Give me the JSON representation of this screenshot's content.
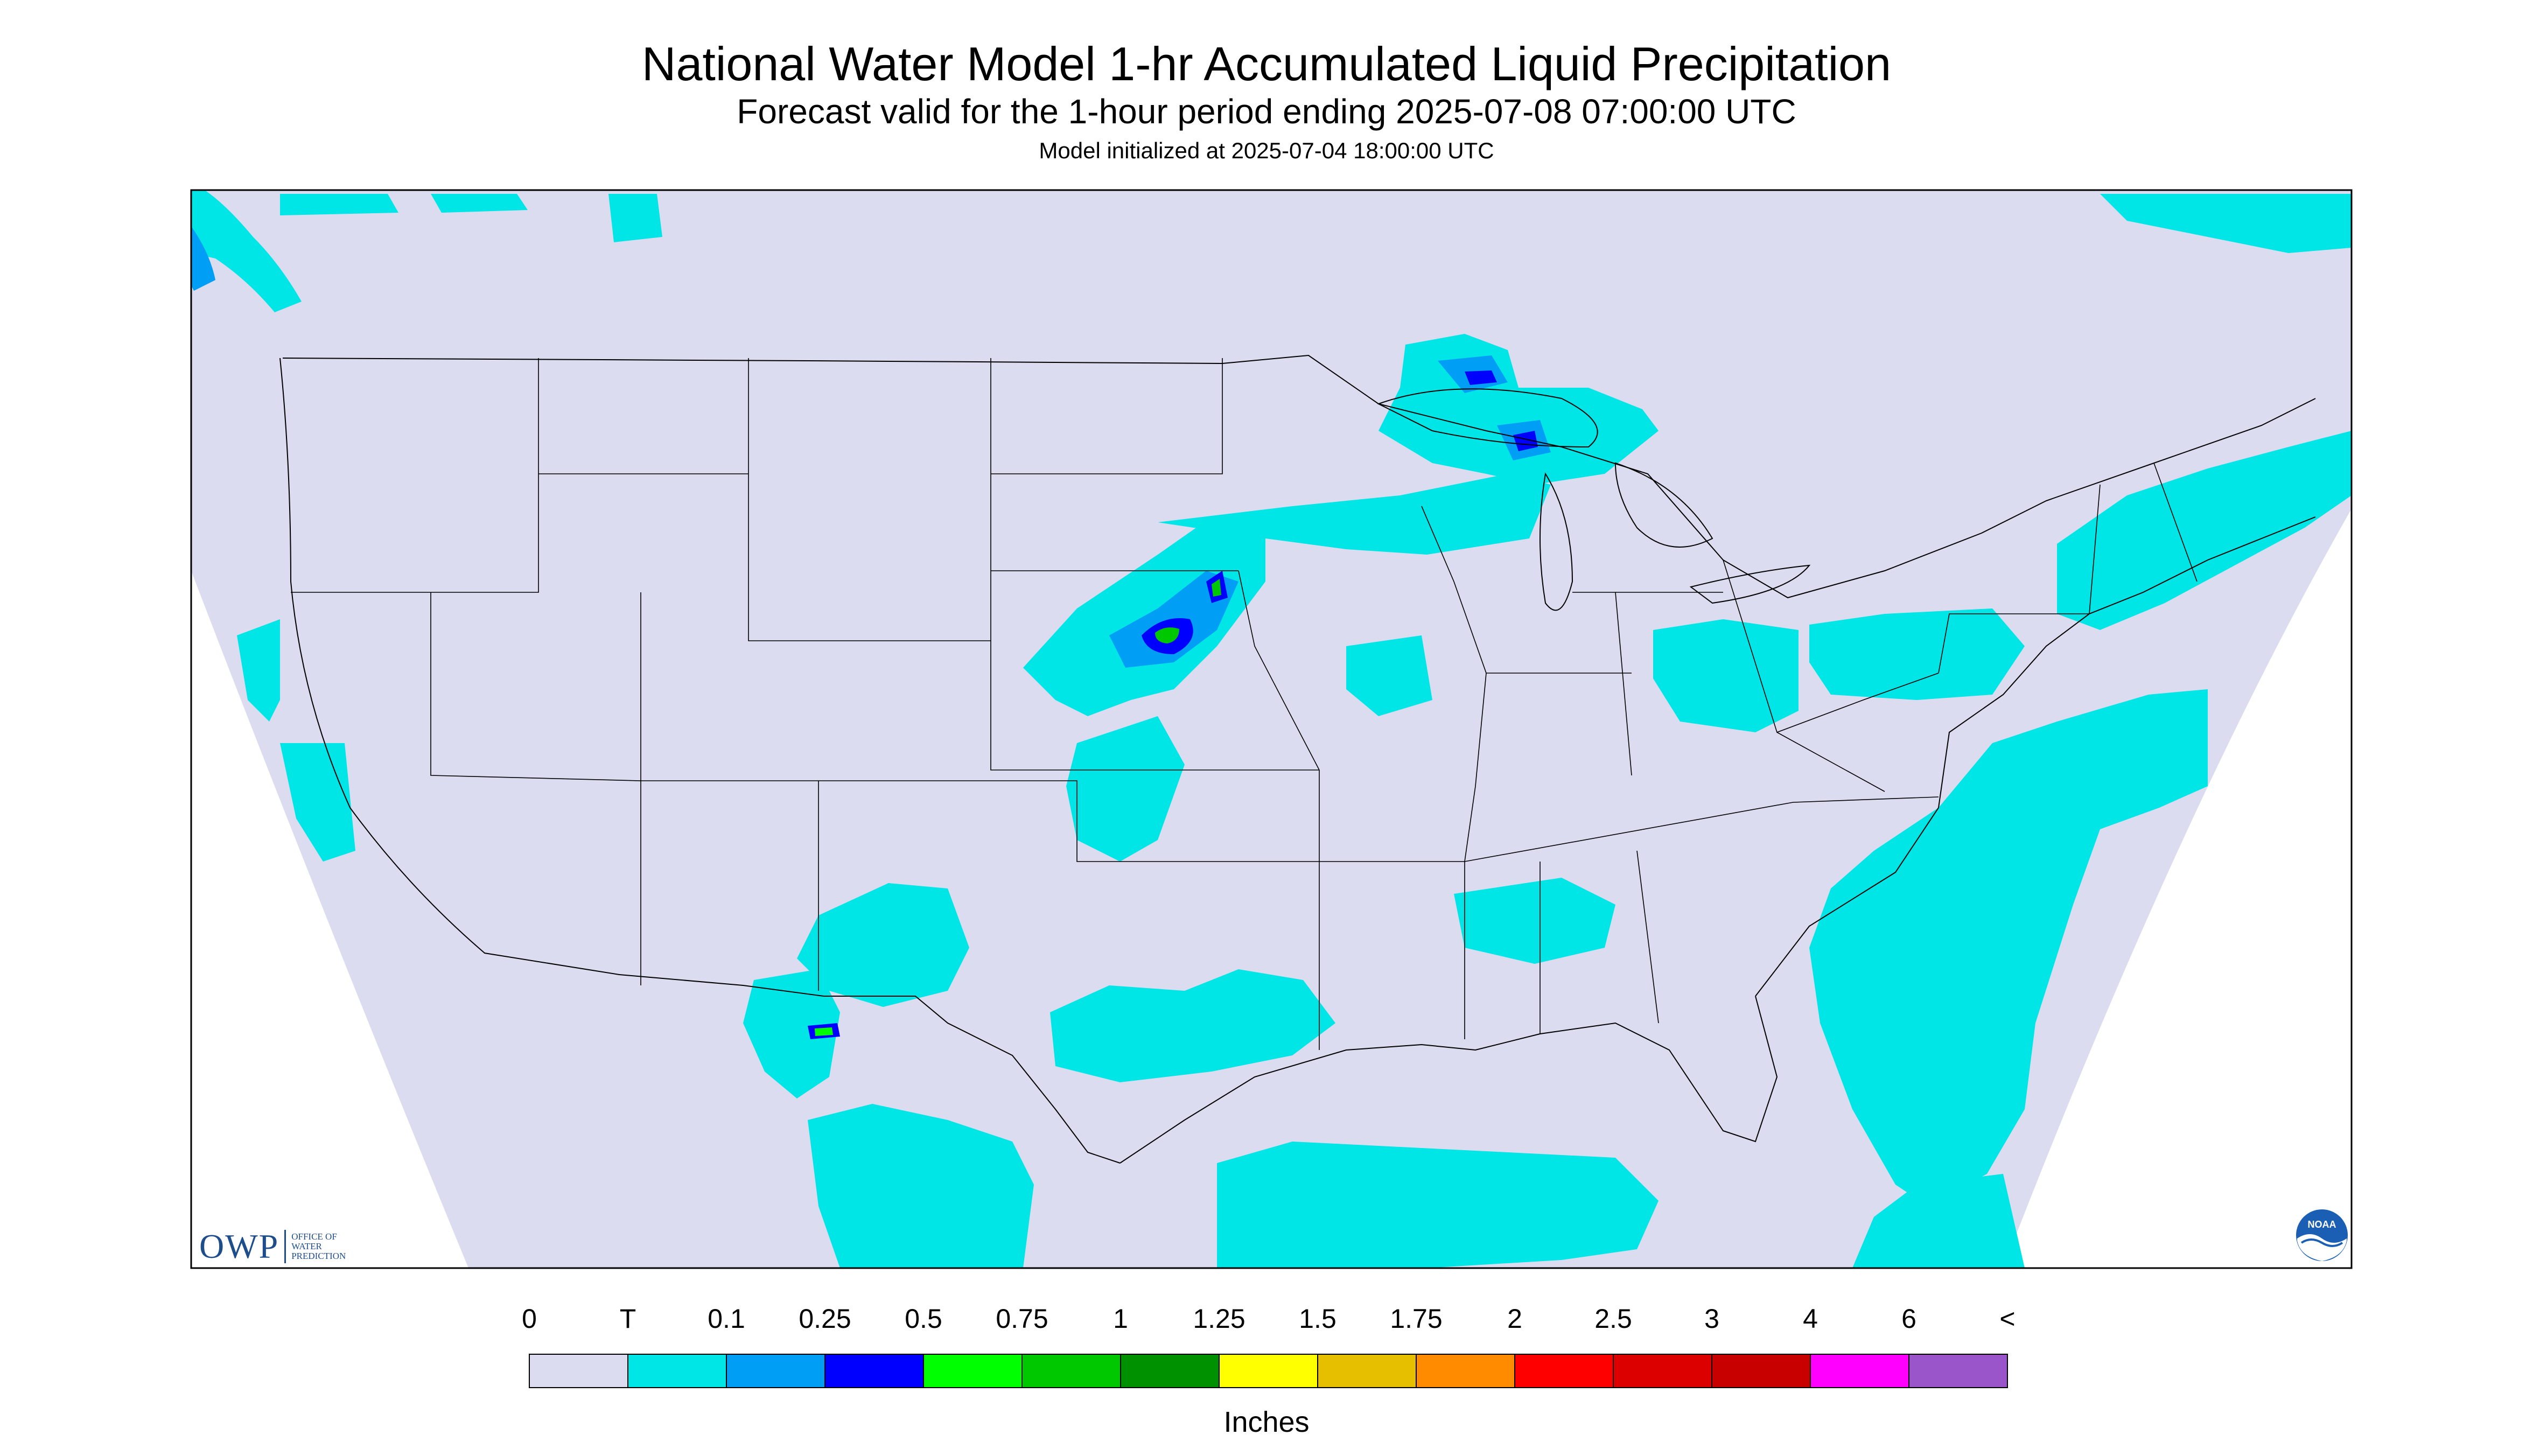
{
  "header": {
    "title": "National Water Model 1-hr Accumulated Liquid Precipitation",
    "subtitle": "Forecast valid for the 1-hour period ending 2025-07-08 07:00:00 UTC",
    "init": "Model initialized at 2025-07-04 18:00:00 UTC"
  },
  "map": {
    "background_color": "#dcdcf0",
    "border_color": "#000000",
    "land_line_color": "#000000",
    "precip_areas": [
      {
        "region": "Pacific Northwest coast",
        "category": "T",
        "color": "#00e5e5"
      },
      {
        "region": "Northern California coast",
        "category": "T",
        "color": "#00e5e5"
      },
      {
        "region": "Nebraska / South Dakota",
        "category": "0.75",
        "color": "#00c800"
      },
      {
        "region": "Lake Superior",
        "category": "0.25",
        "color": "#0000ff"
      },
      {
        "region": "Southern Arizona",
        "category": "0.5",
        "color": "#00ff00"
      },
      {
        "region": "Western Atlantic",
        "category": "T",
        "color": "#00e5e5"
      },
      {
        "region": "Gulf of Mexico",
        "category": "T",
        "color": "#00e5e5"
      }
    ]
  },
  "legend": {
    "labels": [
      "0",
      "T",
      "0.1",
      "0.25",
      "0.5",
      "0.75",
      "1",
      "1.25",
      "1.5",
      "1.75",
      "2",
      "2.5",
      "3",
      "4",
      "6",
      "<"
    ],
    "colors": [
      "#dcdcf0",
      "#00e5e5",
      "#009ef5",
      "#0000ff",
      "#00ff00",
      "#00c800",
      "#009100",
      "#ffff00",
      "#e6c000",
      "#ff8c00",
      "#ff0000",
      "#dc0000",
      "#c80000",
      "#ff00ff",
      "#9955c9"
    ],
    "units": "Inches"
  },
  "logos": {
    "owp": {
      "letters": "OWP",
      "line1": "OFFICE OF",
      "line2": "WATER",
      "line3": "PREDICTION",
      "color": "#1e4d8c"
    },
    "noaa": {
      "text": "NOAA",
      "icon": "noaa-logo-icon",
      "color": "#1a5fb4"
    }
  }
}
